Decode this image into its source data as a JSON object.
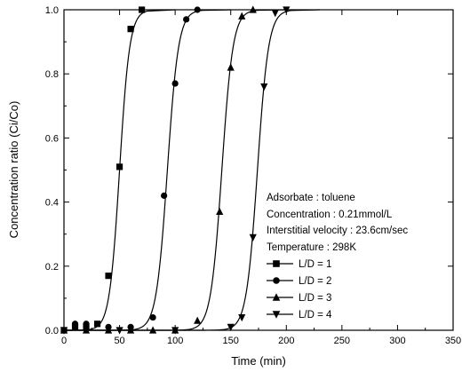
{
  "chart_data": {
    "type": "line",
    "xlabel": "Time (min)",
    "ylabel": "Concentration ratio (Ci/Co)",
    "xlim": [
      0,
      350
    ],
    "ylim": [
      0.0,
      1.0
    ],
    "xticks": [
      0,
      50,
      100,
      150,
      200,
      250,
      300,
      350
    ],
    "yticks": [
      0.0,
      0.2,
      0.4,
      0.6,
      0.8,
      1.0
    ],
    "ytick_labels": [
      "0.0",
      "0.2",
      "0.4",
      "0.6",
      "0.8",
      "1.0"
    ],
    "grid": false,
    "legend_placement": "lower-right",
    "annotations": [
      "Adsorbate : toluene",
      "Concentration : 0.21mmol/L",
      "Interstitial velocity : 23.6cm/sec",
      "Temperature : 298K"
    ],
    "series": [
      {
        "name": "L/D = 1",
        "marker": "square",
        "points": [
          [
            0,
            0.0
          ],
          [
            10,
            0.01
          ],
          [
            20,
            0.01
          ],
          [
            30,
            0.02
          ],
          [
            40,
            0.17
          ],
          [
            50,
            0.51
          ],
          [
            60,
            0.94
          ],
          [
            70,
            1.0
          ]
        ],
        "curve": {
          "midpoint": 50,
          "steepness": 0.22,
          "end": 75
        }
      },
      {
        "name": "L/D = 2",
        "marker": "circle",
        "points": [
          [
            0,
            0.0
          ],
          [
            10,
            0.02
          ],
          [
            20,
            0.02
          ],
          [
            40,
            0.01
          ],
          [
            60,
            0.01
          ],
          [
            80,
            0.04
          ],
          [
            90,
            0.42
          ],
          [
            100,
            0.77
          ],
          [
            110,
            0.97
          ],
          [
            120,
            1.0
          ]
        ],
        "curve": {
          "midpoint": 93,
          "steepness": 0.2,
          "end": 125
        }
      },
      {
        "name": "L/D = 3",
        "marker": "triangle-up",
        "points": [
          [
            0,
            0.0
          ],
          [
            20,
            0.0
          ],
          [
            40,
            0.0
          ],
          [
            60,
            0.0
          ],
          [
            80,
            0.0
          ],
          [
            100,
            0.0
          ],
          [
            120,
            0.03
          ],
          [
            140,
            0.37
          ],
          [
            150,
            0.82
          ],
          [
            160,
            0.98
          ],
          [
            170,
            1.0
          ]
        ],
        "curve": {
          "midpoint": 142,
          "steepness": 0.2,
          "end": 175
        }
      },
      {
        "name": "L/D = 4",
        "marker": "triangle-down",
        "points": [
          [
            0,
            0.0
          ],
          [
            50,
            0.0
          ],
          [
            100,
            0.0
          ],
          [
            150,
            0.01
          ],
          [
            160,
            0.04
          ],
          [
            170,
            0.29
          ],
          [
            180,
            0.76
          ],
          [
            190,
            0.99
          ],
          [
            200,
            1.0
          ]
        ],
        "curve": {
          "midpoint": 174,
          "steepness": 0.2,
          "end": 205
        }
      }
    ]
  }
}
